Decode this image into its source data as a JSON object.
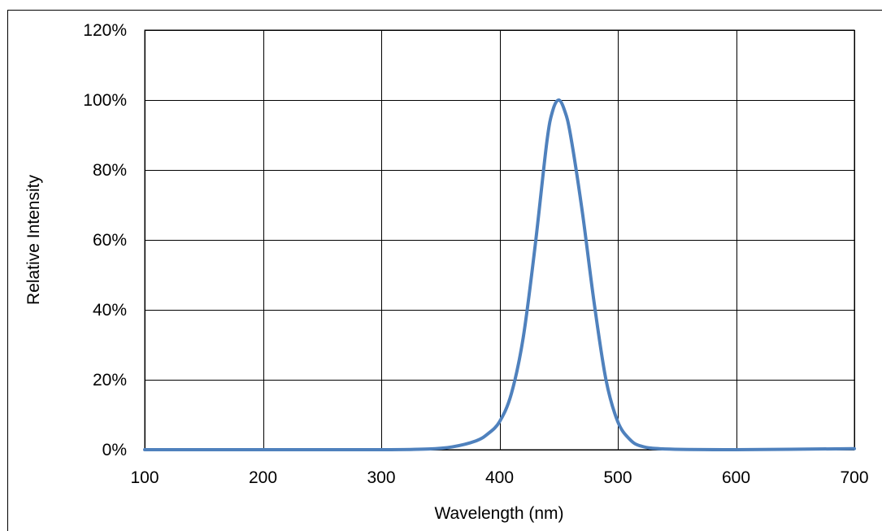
{
  "chart_data": {
    "type": "line",
    "title": "",
    "xlabel": "Wavelength (nm)",
    "ylabel": "Relative Intensity",
    "xlim": [
      100,
      700
    ],
    "ylim": [
      0,
      120
    ],
    "x_ticks": [
      100,
      200,
      300,
      400,
      500,
      600,
      700
    ],
    "x_tick_labels": [
      "100",
      "200",
      "300",
      "400",
      "500",
      "600",
      "700"
    ],
    "y_ticks": [
      0,
      20,
      40,
      60,
      80,
      100,
      120
    ],
    "y_tick_labels": [
      "0%",
      "20%",
      "40%",
      "60%",
      "80%",
      "100%",
      "120%"
    ],
    "grid": true,
    "legend": "none",
    "series": [
      {
        "color": "#4f81bd",
        "x": [
          100,
          200,
          300,
          340,
          360,
          380,
          390,
          400,
          410,
          420,
          430,
          440,
          445,
          450,
          455,
          460,
          470,
          480,
          490,
          500,
          510,
          520,
          540,
          600,
          700
        ],
        "y": [
          0,
          0,
          0,
          0.2,
          0.8,
          2.5,
          4.5,
          8,
          16,
          32,
          58,
          88,
          97,
          100,
          97,
          90,
          68,
          42,
          20,
          8,
          3,
          1,
          0.2,
          0,
          0.3
        ]
      }
    ]
  }
}
